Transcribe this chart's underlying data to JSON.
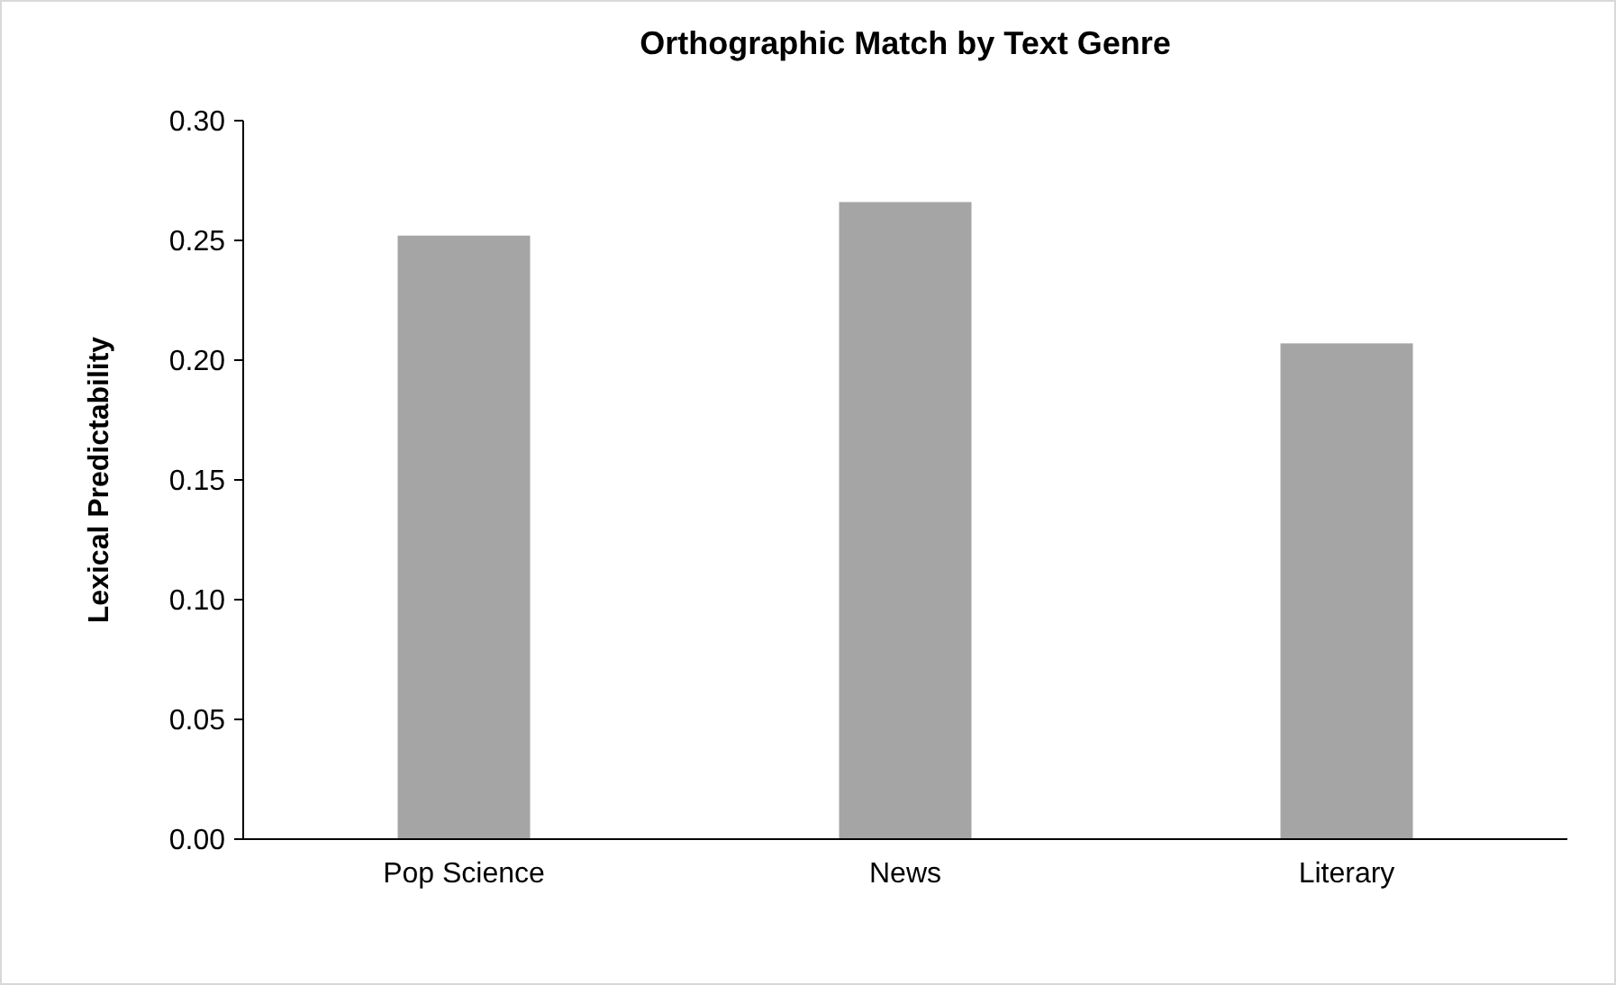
{
  "chart_data": {
    "type": "bar",
    "title": "Orthographic Match by Text Genre",
    "ylabel": "Lexical Predictability",
    "categories": [
      "Pop Science",
      "News",
      "Literary"
    ],
    "values": [
      0.252,
      0.266,
      0.207
    ],
    "color": "#a5a5a5",
    "ylim": [
      0,
      0.3
    ],
    "yticks": [
      {
        "value": 0,
        "label": "0.00"
      },
      {
        "value": 0.05,
        "label": "0.05"
      },
      {
        "value": 0.1,
        "label": "0.10"
      },
      {
        "value": 0.15,
        "label": "0.15"
      },
      {
        "value": 0.2,
        "label": "0.20"
      },
      {
        "value": 0.25,
        "label": "0.25"
      },
      {
        "value": 0.3,
        "label": "0.30"
      }
    ]
  }
}
